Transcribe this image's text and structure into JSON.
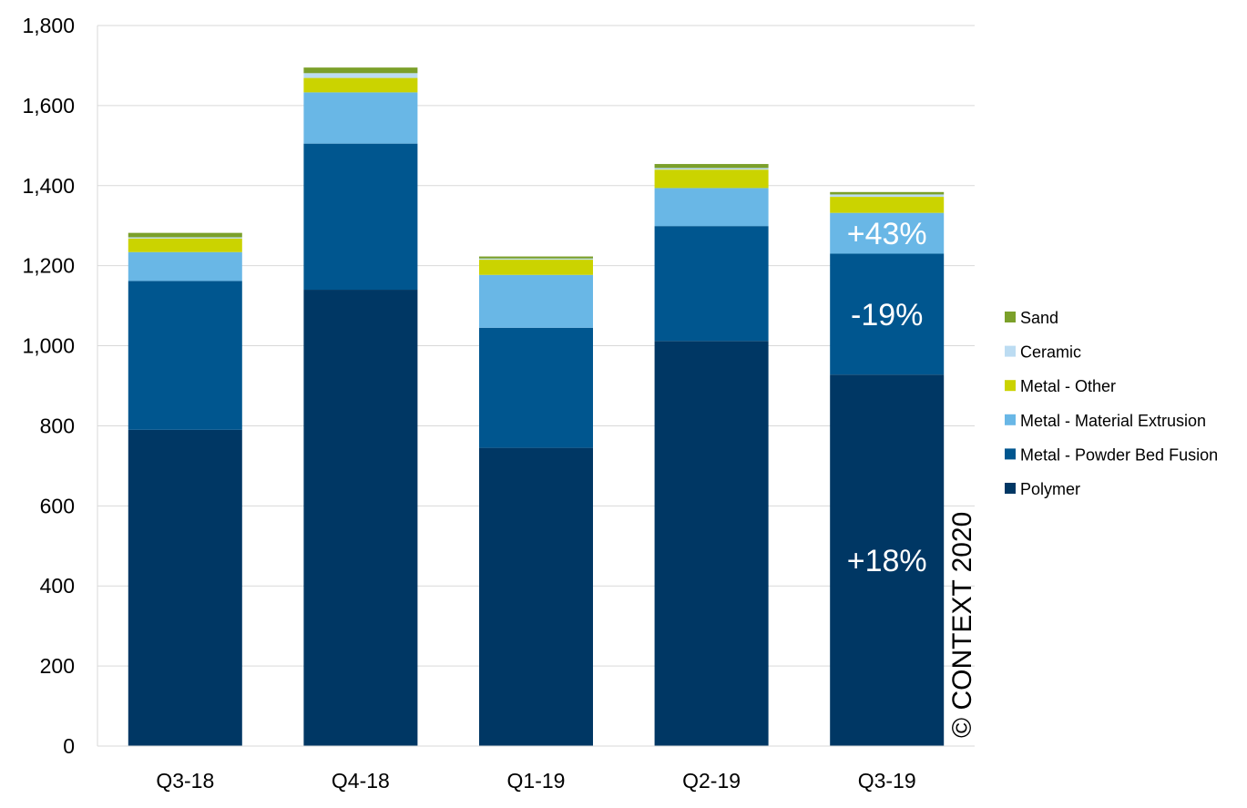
{
  "chart_data": {
    "type": "bar",
    "stacked": true,
    "categories": [
      "Q3-18",
      "Q4-18",
      "Q1-19",
      "Q2-19",
      "Q3-19"
    ],
    "series": [
      {
        "name": "Polymer",
        "color": "#003764",
        "values": [
          790,
          1140,
          745,
          1012,
          928
        ]
      },
      {
        "name": "Metal - Powder Bed Fusion",
        "color": "#00568f",
        "values": [
          372,
          365,
          300,
          287,
          302
        ]
      },
      {
        "name": "Metal - Material Extrusion",
        "color": "#69b7e6",
        "values": [
          72,
          128,
          132,
          95,
          102
        ]
      },
      {
        "name": "Metal - Other",
        "color": "#cbd300",
        "values": [
          34,
          36,
          38,
          46,
          40
        ]
      },
      {
        "name": "Ceramic",
        "color": "#bcdcf2",
        "values": [
          3,
          12,
          3,
          4,
          6
        ]
      },
      {
        "name": "Sand",
        "color": "#7ba02a",
        "values": [
          11,
          14,
          5,
          10,
          6
        ]
      }
    ],
    "ylim": [
      0,
      1800
    ],
    "yticks": [
      0,
      200,
      400,
      600,
      800,
      1000,
      1200,
      1400,
      1600,
      1800
    ],
    "ytick_labels": [
      "0",
      "200",
      "400",
      "600",
      "800",
      "1,000",
      "1,200",
      "1,400",
      "1,600",
      "1,800"
    ],
    "grid": true,
    "legend_position": "right",
    "annotations": [
      {
        "category": "Q3-19",
        "series": "Polymer",
        "text": "+18%"
      },
      {
        "category": "Q3-19",
        "series": "Metal - Powder Bed Fusion",
        "text": "-19%"
      },
      {
        "category": "Q3-19",
        "series": "Metal - Material Extrusion",
        "text": "+43%"
      }
    ],
    "watermark": "© CONTEXT 2020",
    "title": "",
    "xlabel": "",
    "ylabel": ""
  }
}
